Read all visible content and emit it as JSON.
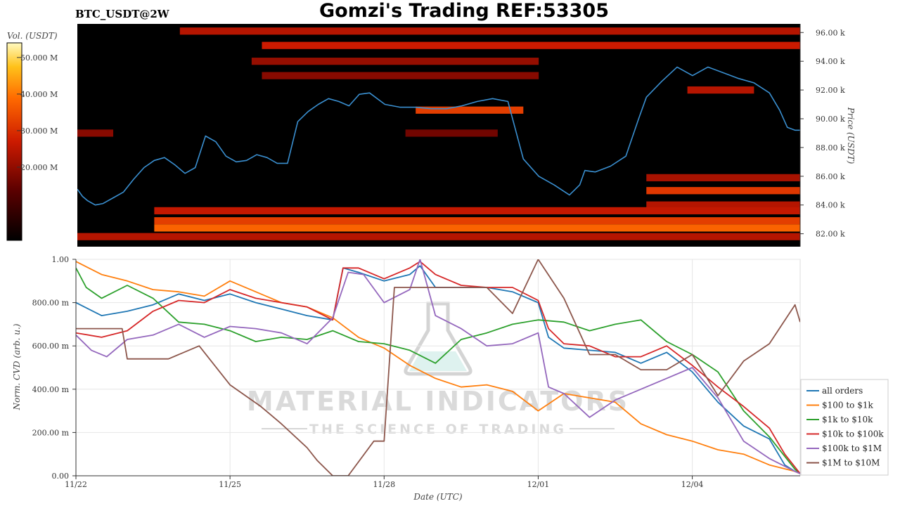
{
  "header": {
    "symbol": "BTC_USDT@2W",
    "title": "Gomzi's Trading REF:53305"
  },
  "watermark": {
    "main": "MATERIAL INDICATORS",
    "tagline": "THE SCIENCE OF TRADING"
  },
  "colors": {
    "heat_bg": "#000000",
    "price_line": "#3a8fd0"
  },
  "chart_data": [
    {
      "type": "heatmap",
      "colorbar": {
        "title": "Vol. (USDT)",
        "ticks": [
          "50.000 M",
          "40.000 M",
          "30.000 M",
          "20.000 M"
        ],
        "tick_values": [
          50,
          40,
          30,
          20
        ],
        "range": [
          0,
          54
        ]
      },
      "ylabel": "Price (USDT)",
      "yticks": [
        "96.00 k",
        "94.00 k",
        "92.00 k",
        "90.00 k",
        "88.00 k",
        "86.00 k",
        "84.00 k",
        "82.00 k"
      ],
      "ytick_values": [
        96,
        94,
        92,
        90,
        88,
        86,
        84,
        82
      ],
      "ylim": [
        81.1,
        96.6
      ],
      "xlim": [
        0,
        14.1
      ],
      "price_series": {
        "x": [
          0,
          0.1,
          0.2,
          0.35,
          0.5,
          0.7,
          0.9,
          1.1,
          1.3,
          1.5,
          1.7,
          1.9,
          2.1,
          2.3,
          2.5,
          2.7,
          2.9,
          3.1,
          3.3,
          3.5,
          3.7,
          3.9,
          4.1,
          4.3,
          4.5,
          4.7,
          4.9,
          5.1,
          5.3,
          5.5,
          5.7,
          6.0,
          6.3,
          6.6,
          6.9,
          7.2,
          7.5,
          7.8,
          8.1,
          8.4,
          8.7,
          9.0,
          9.3,
          9.6,
          9.8,
          9.9,
          10.1,
          10.4,
          10.7,
          10.95,
          11.1,
          11.4,
          11.7,
          12.0,
          12.3,
          12.6,
          12.9,
          13.2,
          13.5,
          13.7,
          13.85,
          14.0,
          14.1
        ],
        "y": [
          85.1,
          84.6,
          84.3,
          84.0,
          84.1,
          84.5,
          84.9,
          85.8,
          86.6,
          87.1,
          87.3,
          86.8,
          86.2,
          86.6,
          88.8,
          88.4,
          87.4,
          87.0,
          87.1,
          87.5,
          87.3,
          86.9,
          86.9,
          89.8,
          90.5,
          91.0,
          91.4,
          91.2,
          90.9,
          91.7,
          91.8,
          91.0,
          90.8,
          90.8,
          90.7,
          90.7,
          90.9,
          91.2,
          91.4,
          91.2,
          87.2,
          86.0,
          85.4,
          84.7,
          85.4,
          86.4,
          86.3,
          86.7,
          87.4,
          90.0,
          91.5,
          92.6,
          93.6,
          93.0,
          93.6,
          93.2,
          92.8,
          92.5,
          91.8,
          90.6,
          89.4,
          89.2,
          89.2
        ]
      },
      "bands": [
        {
          "y": 96.1,
          "x0": 2.0,
          "x1": 14.1,
          "intensity": 0.45
        },
        {
          "y": 95.1,
          "x0": 3.6,
          "x1": 14.1,
          "intensity": 0.5
        },
        {
          "y": 94.0,
          "x0": 3.4,
          "x1": 9.0,
          "intensity": 0.38
        },
        {
          "y": 93.0,
          "x0": 3.6,
          "x1": 9.0,
          "intensity": 0.35
        },
        {
          "y": 92.0,
          "x0": 11.9,
          "x1": 13.2,
          "intensity": 0.45
        },
        {
          "y": 90.6,
          "x0": 6.6,
          "x1": 8.7,
          "intensity": 0.6
        },
        {
          "y": 89.0,
          "x0": 6.4,
          "x1": 8.2,
          "intensity": 0.3
        },
        {
          "y": 89.0,
          "x0": 0.0,
          "x1": 0.7,
          "intensity": 0.35
        },
        {
          "y": 85.9,
          "x0": 11.1,
          "x1": 14.1,
          "intensity": 0.42
        },
        {
          "y": 85.0,
          "x0": 11.1,
          "x1": 14.1,
          "intensity": 0.58
        },
        {
          "y": 84.0,
          "x0": 11.1,
          "x1": 14.1,
          "intensity": 0.45
        },
        {
          "y": 83.6,
          "x0": 1.5,
          "x1": 14.1,
          "intensity": 0.48
        },
        {
          "y": 82.9,
          "x0": 1.5,
          "x1": 14.1,
          "intensity": 0.6
        },
        {
          "y": 82.4,
          "x0": 1.5,
          "x1": 14.1,
          "intensity": 0.7
        },
        {
          "y": 81.8,
          "x0": 0.0,
          "x1": 14.1,
          "intensity": 0.45
        }
      ]
    },
    {
      "type": "line",
      "title": "",
      "xlabel": "Date (UTC)",
      "ylabel": "Norm. CVD (arb. u.)",
      "xticks": [
        "11/22",
        "11/25",
        "11/28",
        "12/01",
        "12/04"
      ],
      "xtick_values": [
        0,
        3,
        6,
        9,
        12
      ],
      "yticks": [
        "1.00",
        "800.00 m",
        "600.00 m",
        "400.00 m",
        "200.00 m",
        "0.00"
      ],
      "ytick_values": [
        1.0,
        0.8,
        0.6,
        0.4,
        0.2,
        0.0
      ],
      "xlim": [
        0,
        14.1
      ],
      "ylim": [
        0,
        1.0
      ],
      "grid": true,
      "legend": "right",
      "series": [
        {
          "name": "all orders",
          "color": "#1f77b4",
          "x": [
            0,
            0.5,
            1,
            1.5,
            2,
            2.5,
            3,
            3.5,
            4,
            4.5,
            5,
            5.2,
            5.5,
            6,
            6.5,
            6.7,
            7,
            7.5,
            8,
            8.5,
            9,
            9.2,
            9.5,
            10,
            10.5,
            11,
            11.5,
            12,
            12.5,
            13,
            13.5,
            13.8,
            14,
            14.1
          ],
          "y": [
            0.8,
            0.74,
            0.76,
            0.79,
            0.84,
            0.81,
            0.84,
            0.8,
            0.77,
            0.74,
            0.72,
            0.96,
            0.94,
            0.9,
            0.93,
            0.97,
            0.87,
            0.87,
            0.87,
            0.85,
            0.8,
            0.64,
            0.59,
            0.58,
            0.57,
            0.52,
            0.57,
            0.48,
            0.34,
            0.23,
            0.17,
            0.05,
            0.02,
            0.01
          ]
        },
        {
          "name": "$100 to $1k",
          "color": "#ff7f0e",
          "x": [
            0,
            0.5,
            1,
            1.5,
            2,
            2.5,
            3,
            3.5,
            4,
            4.5,
            5,
            5.5,
            6,
            6.5,
            7,
            7.5,
            8,
            8.5,
            9,
            9.5,
            10,
            10.5,
            11,
            11.5,
            12,
            12.5,
            13,
            13.5,
            14,
            14.1
          ],
          "y": [
            0.99,
            0.93,
            0.9,
            0.86,
            0.85,
            0.83,
            0.9,
            0.85,
            0.8,
            0.78,
            0.73,
            0.64,
            0.59,
            0.51,
            0.45,
            0.41,
            0.42,
            0.39,
            0.3,
            0.38,
            0.36,
            0.34,
            0.24,
            0.19,
            0.16,
            0.12,
            0.1,
            0.05,
            0.02,
            0.01
          ]
        },
        {
          "name": "$1k to $10k",
          "color": "#2ca02c",
          "x": [
            0,
            0.2,
            0.5,
            1,
            1.5,
            2,
            2.5,
            3,
            3.5,
            4,
            4.5,
            5,
            5.5,
            6,
            6.5,
            7,
            7.5,
            8,
            8.5,
            9,
            9.5,
            10,
            10.5,
            11,
            11.5,
            12,
            12.5,
            13,
            13.5,
            14,
            14.1
          ],
          "y": [
            0.96,
            0.87,
            0.82,
            0.88,
            0.82,
            0.71,
            0.7,
            0.67,
            0.62,
            0.64,
            0.63,
            0.67,
            0.62,
            0.61,
            0.58,
            0.52,
            0.63,
            0.66,
            0.7,
            0.72,
            0.71,
            0.67,
            0.7,
            0.72,
            0.62,
            0.56,
            0.48,
            0.3,
            0.18,
            0.03,
            0.01
          ]
        },
        {
          "name": "$10k to $100k",
          "color": "#d62728",
          "x": [
            0,
            0.5,
            1,
            1.5,
            2,
            2.5,
            3,
            3.5,
            4,
            4.5,
            5,
            5.2,
            5.5,
            6,
            6.5,
            6.7,
            7,
            7.5,
            8,
            8.5,
            9,
            9.2,
            9.5,
            10,
            10.5,
            11,
            11.5,
            12,
            12.5,
            13,
            13.5,
            13.8,
            14,
            14.1
          ],
          "y": [
            0.66,
            0.64,
            0.67,
            0.76,
            0.81,
            0.8,
            0.86,
            0.82,
            0.8,
            0.78,
            0.72,
            0.96,
            0.96,
            0.91,
            0.96,
            0.99,
            0.93,
            0.88,
            0.87,
            0.87,
            0.81,
            0.68,
            0.61,
            0.6,
            0.55,
            0.55,
            0.6,
            0.51,
            0.41,
            0.32,
            0.22,
            0.1,
            0.04,
            0.01
          ]
        },
        {
          "name": "$100k to $1M",
          "color": "#9467bd",
          "x": [
            0,
            0.3,
            0.6,
            1,
            1.5,
            2,
            2.5,
            3,
            3.5,
            4,
            4.5,
            5,
            5.3,
            5.6,
            6,
            6.5,
            6.7,
            7,
            7.5,
            8,
            8.5,
            9,
            9.2,
            9.5,
            10,
            10.5,
            11,
            11.5,
            12,
            12.5,
            13,
            13.5,
            14,
            14.1
          ],
          "y": [
            0.65,
            0.58,
            0.55,
            0.63,
            0.65,
            0.7,
            0.64,
            0.69,
            0.68,
            0.66,
            0.61,
            0.73,
            0.94,
            0.93,
            0.8,
            0.86,
            1.0,
            0.74,
            0.68,
            0.6,
            0.61,
            0.66,
            0.41,
            0.38,
            0.27,
            0.35,
            0.4,
            0.45,
            0.5,
            0.36,
            0.16,
            0.08,
            0.02,
            0.01
          ]
        },
        {
          "name": "$1M to $10M",
          "color": "#8c564b",
          "x": [
            0,
            0.9,
            1.0,
            1.8,
            2.4,
            3.0,
            3.6,
            4.0,
            4.5,
            4.7,
            5.0,
            5.3,
            5.8,
            6.0,
            6.2,
            6.5,
            7.0,
            7.5,
            8.0,
            8.5,
            9.0,
            9.5,
            10.0,
            10.5,
            11.0,
            11.5,
            12.0,
            12.5,
            13.0,
            13.5,
            14.0,
            14.1
          ],
          "y": [
            0.68,
            0.68,
            0.54,
            0.54,
            0.6,
            0.42,
            0.32,
            0.24,
            0.13,
            0.07,
            0.0,
            0.0,
            0.16,
            0.16,
            0.87,
            0.87,
            0.87,
            0.87,
            0.87,
            0.75,
            1.0,
            0.82,
            0.56,
            0.56,
            0.49,
            0.49,
            0.56,
            0.37,
            0.53,
            0.61,
            0.79,
            0.71
          ]
        }
      ]
    }
  ]
}
